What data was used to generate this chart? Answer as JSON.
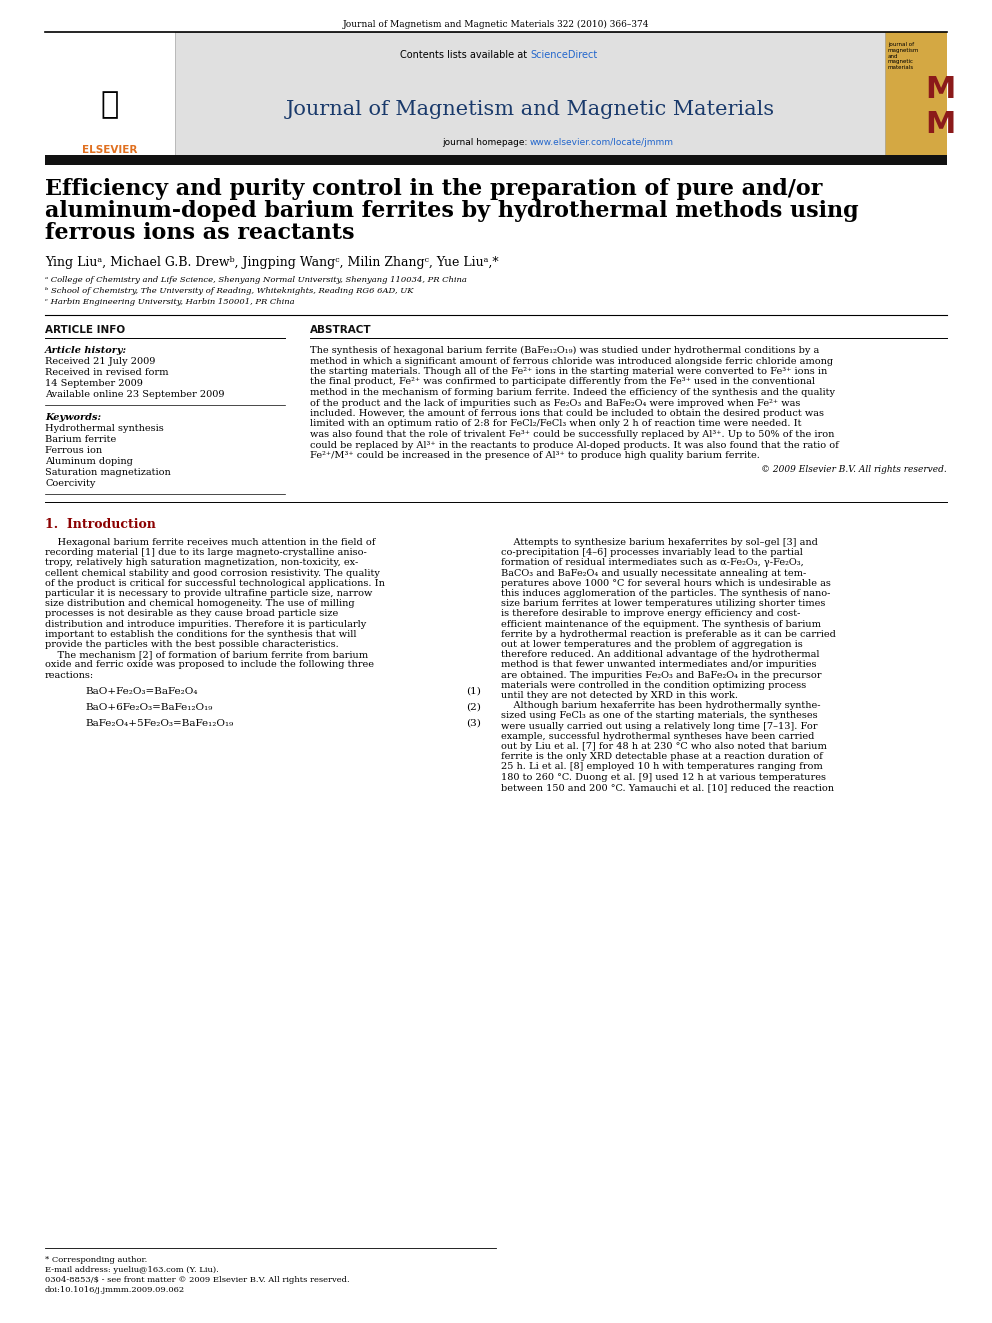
{
  "page_width": 9.92,
  "page_height": 13.23,
  "bg_color": "#ffffff",
  "top_journal_ref": "Journal of Magnetism and Magnetic Materials 322 (2010) 366–374",
  "header_bg": "#e8e8e8",
  "sciencedirect_color": "#2266cc",
  "journal_title": "Journal of Magnetism and Magnetic Materials",
  "journal_title_color": "#1a3a6b",
  "journal_homepage_plain": "journal homepage: ",
  "journal_homepage_url": "www.elsevier.com/locate/jmmm",
  "homepage_color": "#2266cc",
  "elsevier_color": "#e07020",
  "thick_bar_color": "#111111",
  "article_title_line1": "Efficiency and purity control in the preparation of pure and/or",
  "article_title_line2": "aluminum-doped barium ferrites by hydrothermal methods using",
  "article_title_line3": "ferrous ions as reactants",
  "article_title_color": "#000000",
  "authors_line": "Ying Liuᵃ, Michael G.B. Drewᵇ, Jingping Wangᶜ, Milin Zhangᶜ, Yue Liuᵃ,*",
  "affil_a": "ᵃ College of Chemistry and Life Science, Shenyang Normal University, Shenyang 110034, PR China",
  "affil_b": "ᵇ School of Chemistry, The University of Reading, Whiteknights, Reading RG6 6AD, UK",
  "affil_c": "ᶜ Harbin Engineering University, Harbin 150001, PR China",
  "article_info_title": "ARTICLE INFO",
  "abstract_title": "ABSTRACT",
  "article_history_label": "Article history:",
  "received": "Received 21 July 2009",
  "received_revised": "Received in revised form",
  "revised_date": "14 September 2009",
  "available": "Available online 23 September 2009",
  "keywords_label": "Keywords:",
  "keywords": [
    "Hydrothermal synthesis",
    "Barium ferrite",
    "Ferrous ion",
    "Aluminum doping",
    "Saturation magnetization",
    "Coercivity"
  ],
  "abstract_lines": [
    "The synthesis of hexagonal barium ferrite (BaFe₁₂O₁₉) was studied under hydrothermal conditions by a",
    "method in which a significant amount of ferrous chloride was introduced alongside ferric chloride among",
    "the starting materials. Though all of the Fe²⁺ ions in the starting material were converted to Fe³⁺ ions in",
    "the final product, Fe²⁺ was confirmed to participate differently from the Fe³⁺ used in the conventional",
    "method in the mechanism of forming barium ferrite. Indeed the efficiency of the synthesis and the quality",
    "of the product and the lack of impurities such as Fe₂O₃ and BaFe₂O₄ were improved when Fe²⁺ was",
    "included. However, the amount of ferrous ions that could be included to obtain the desired product was",
    "limited with an optimum ratio of 2:8 for FeCl₂/FeCl₃ when only 2 h of reaction time were needed. It",
    "was also found that the role of trivalent Fe³⁺ could be successfully replaced by Al³⁺. Up to 50% of the iron",
    "could be replaced by Al³⁺ in the reactants to produce Al-doped products. It was also found that the ratio of",
    "Fe²⁺/M³⁺ could be increased in the presence of Al³⁺ to produce high quality barium ferrite."
  ],
  "copyright": "© 2009 Elsevier B.V. All rights reserved.",
  "section1_title": "1.  Introduction",
  "intro_left_lines": [
    "    Hexagonal barium ferrite receives much attention in the field of",
    "recording material [1] due to its large magneto-crystalline aniso-",
    "tropy, relatively high saturation magnetization, non-toxicity, ex-",
    "cellent chemical stability and good corrosion resistivity. The quality",
    "of the product is critical for successful technological applications. In",
    "particular it is necessary to provide ultrafine particle size, narrow",
    "size distribution and chemical homogeneity. The use of milling",
    "processes is not desirable as they cause broad particle size",
    "distribution and introduce impurities. Therefore it is particularly",
    "important to establish the conditions for the synthesis that will",
    "provide the particles with the best possible characteristics.",
    "    The mechanism [2] of formation of barium ferrite from barium",
    "oxide and ferric oxide was proposed to include the following three",
    "reactions:"
  ],
  "reaction1": "BaO+Fe₂O₃=BaFe₂O₄",
  "reaction1_num": "(1)",
  "reaction2": "BaO+6Fe₂O₃=BaFe₁₂O₁₉",
  "reaction2_num": "(2)",
  "reaction3": "BaFe₂O₄+5Fe₂O₃=BaFe₁₂O₁₉",
  "reaction3_num": "(3)",
  "intro_right_lines": [
    "    Attempts to synthesize barium hexaferrites by sol–gel [3] and",
    "co-precipitation [4–6] processes invariably lead to the partial",
    "formation of residual intermediates such as α-Fe₂O₃, γ-Fe₂O₃,",
    "BaCO₃ and BaFe₂O₄ and usually necessitate annealing at tem-",
    "peratures above 1000 °C for several hours which is undesirable as",
    "this induces agglomeration of the particles. The synthesis of nano-",
    "size barium ferrites at lower temperatures utilizing shorter times",
    "is therefore desirable to improve energy efficiency and cost-",
    "efficient maintenance of the equipment. The synthesis of barium",
    "ferrite by a hydrothermal reaction is preferable as it can be carried",
    "out at lower temperatures and the problem of aggregation is",
    "therefore reduced. An additional advantage of the hydrothermal",
    "method is that fewer unwanted intermediates and/or impurities",
    "are obtained. The impurities Fe₂O₃ and BaFe₂O₄ in the precursor",
    "materials were controlled in the condition optimizing process",
    "until they are not detected by XRD in this work.",
    "    Although barium hexaferrite has been hydrothermally synthe-",
    "sized using FeCl₃ as one of the starting materials, the syntheses",
    "were usually carried out using a relatively long time [7–13]. For",
    "example, successful hydrothermal syntheses have been carried",
    "out by Liu et al. [7] for 48 h at 230 °C who also noted that barium",
    "ferrite is the only XRD detectable phase at a reaction duration of",
    "25 h. Li et al. [8] employed 10 h with temperatures ranging from",
    "180 to 260 °C. Duong et al. [9] used 12 h at various temperatures",
    "between 150 and 200 °C. Yamauchi et al. [10] reduced the reaction"
  ],
  "footer_line1": "* Corresponding author.",
  "footer_line2": "E-mail address: yueliu@163.com (Y. Liu).",
  "footer_line3": "0304-8853/$ - see front matter © 2009 Elsevier B.V. All rights reserved.",
  "footer_line4": "doi:10.1016/j.jmmm.2009.09.062"
}
